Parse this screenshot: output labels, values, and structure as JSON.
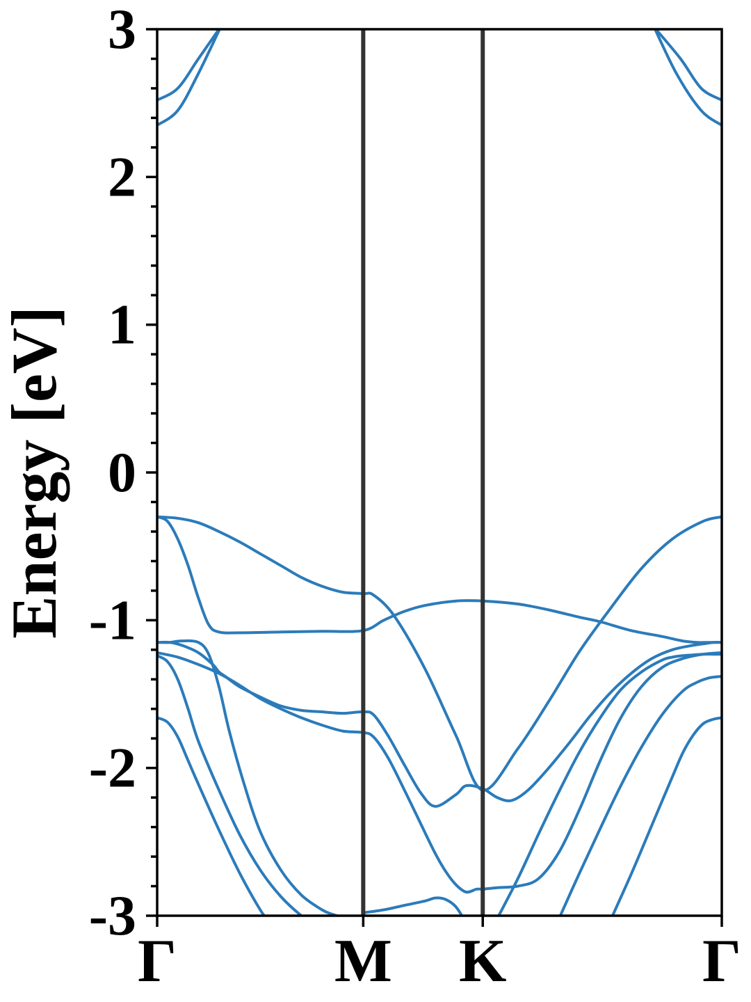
{
  "chart_data": {
    "type": "line",
    "xlabel": "",
    "ylabel": "Energy [eV]",
    "ylim": [
      -3,
      3
    ],
    "y_ticks": [
      "3",
      "2",
      "1",
      "0",
      "-1",
      "-2",
      "-3"
    ],
    "y_tick_values": [
      3,
      2,
      1,
      0,
      -1,
      -2,
      -3
    ],
    "y_minor_step": 0.2,
    "grid": false,
    "k_points": [
      {
        "label": "Γ",
        "x": 0.0
      },
      {
        "label": "M",
        "x": 1.0
      },
      {
        "label": "K",
        "x": 1.58
      },
      {
        "label": "Γ",
        "x": 2.74
      }
    ],
    "xlim": [
      0,
      2.74
    ],
    "colors": {
      "band": "#2b7bba",
      "k_line": "#333333",
      "axis": "#000000"
    },
    "series": [
      {
        "x": [
          0,
          0.1,
          0.2,
          0.3
        ],
        "y": [
          2.52,
          2.6,
          2.8,
          3.0
        ]
      },
      {
        "x": [
          0,
          0.1,
          0.2,
          0.32
        ],
        "y": [
          2.35,
          2.45,
          2.7,
          3.05
        ]
      },
      {
        "x": [
          2.42,
          2.54,
          2.64,
          2.74
        ],
        "y": [
          3.0,
          2.8,
          2.6,
          2.52
        ]
      },
      {
        "x": [
          2.4,
          2.52,
          2.64,
          2.74
        ],
        "y": [
          3.05,
          2.7,
          2.45,
          2.35
        ]
      },
      {
        "x": [
          0,
          0.1,
          0.2,
          0.3,
          0.4,
          0.5,
          0.6,
          0.7,
          0.8,
          0.9,
          1.0,
          1.05,
          1.15,
          1.3,
          1.45,
          1.58,
          1.75,
          1.9,
          2.05,
          2.2,
          2.35,
          2.5,
          2.65,
          2.74
        ],
        "y": [
          -0.3,
          -0.31,
          -0.34,
          -0.4,
          -0.47,
          -0.55,
          -0.63,
          -0.71,
          -0.77,
          -0.81,
          -0.82,
          -0.83,
          -0.97,
          -1.33,
          -1.78,
          -2.15,
          -1.87,
          -1.55,
          -1.21,
          -0.92,
          -0.65,
          -0.45,
          -0.33,
          -0.3
        ]
      },
      {
        "x": [
          0,
          0.05,
          0.1,
          0.15,
          0.2,
          0.25,
          0.3,
          0.4,
          0.6,
          0.8,
          1.0,
          1.1,
          1.2,
          1.3,
          1.45,
          1.58,
          1.75,
          1.9,
          2.05,
          2.15,
          2.3,
          2.45,
          2.55,
          2.62,
          2.68,
          2.74
        ],
        "y": [
          -0.3,
          -0.33,
          -0.45,
          -0.63,
          -0.85,
          -1.03,
          -1.08,
          -1.085,
          -1.08,
          -1.075,
          -1.07,
          -1.0,
          -0.94,
          -0.9,
          -0.87,
          -0.87,
          -0.89,
          -0.93,
          -0.98,
          -1.01,
          -1.07,
          -1.11,
          -1.14,
          -1.15,
          -1.15,
          -1.15
        ]
      },
      {
        "x": [
          0,
          0.06,
          0.12,
          0.2,
          0.25,
          0.3,
          0.35,
          0.42,
          0.5,
          0.6,
          0.7,
          0.8,
          0.85,
          0.9,
          0.95,
          1.0
        ],
        "y": [
          -1.15,
          -1.15,
          -1.14,
          -1.15,
          -1.23,
          -1.45,
          -1.75,
          -2.1,
          -2.43,
          -2.69,
          -2.86,
          -2.96,
          -2.99,
          -3.01,
          -3.02,
          -3.0
        ]
      },
      {
        "x": [
          0,
          0.06,
          0.12,
          0.2,
          0.27,
          0.3,
          0.33,
          0.4,
          0.5,
          0.6,
          0.7,
          0.8,
          0.9,
          1.0,
          1.05,
          1.12,
          1.2,
          1.28,
          1.35,
          1.45,
          1.5,
          1.58,
          1.65,
          1.72,
          1.8,
          1.9,
          2.0,
          2.1,
          2.2,
          2.3,
          2.4,
          2.5,
          2.6,
          2.65,
          2.7,
          2.74
        ],
        "y": [
          -1.15,
          -1.15,
          -1.17,
          -1.22,
          -1.3,
          -1.35,
          -1.38,
          -1.45,
          -1.52,
          -1.58,
          -1.61,
          -1.62,
          -1.63,
          -1.62,
          -1.64,
          -1.78,
          -1.98,
          -2.17,
          -2.26,
          -2.18,
          -2.12,
          -2.14,
          -2.2,
          -2.22,
          -2.15,
          -2.0,
          -1.83,
          -1.65,
          -1.49,
          -1.36,
          -1.26,
          -1.2,
          -1.17,
          -1.16,
          -1.15,
          -1.15
        ]
      },
      {
        "x": [
          0,
          0.1,
          0.2,
          0.3,
          0.4,
          0.5,
          0.6,
          0.7,
          0.8,
          0.9,
          1.0,
          1.05,
          1.12,
          1.2,
          1.28,
          1.35,
          1.4,
          1.45,
          1.5,
          1.55,
          1.58,
          1.65,
          1.75,
          1.85,
          1.95,
          2.05,
          2.15,
          2.25,
          2.35,
          2.45,
          2.55,
          2.65,
          2.74
        ],
        "y": [
          -1.22,
          -1.25,
          -1.3,
          -1.36,
          -1.44,
          -1.53,
          -1.6,
          -1.66,
          -1.71,
          -1.75,
          -1.76,
          -1.79,
          -1.93,
          -2.15,
          -2.38,
          -2.58,
          -2.7,
          -2.79,
          -2.84,
          -2.82,
          -2.82,
          -2.81,
          -2.8,
          -2.75,
          -2.57,
          -2.28,
          -1.95,
          -1.66,
          -1.45,
          -1.32,
          -1.26,
          -1.23,
          -1.22
        ]
      },
      {
        "x": [
          0,
          0.05,
          0.1,
          0.15,
          0.2,
          0.3,
          0.4,
          0.5,
          0.6,
          0.7,
          0.75,
          0.8,
          0.85,
          0.9,
          0.95,
          1.0
        ],
        "y": [
          -1.24,
          -1.28,
          -1.4,
          -1.6,
          -1.82,
          -2.15,
          -2.45,
          -2.69,
          -2.87,
          -3.0,
          -3.04,
          -3.07,
          -3.09,
          -3.1,
          -3.1,
          -3.1
        ]
      },
      {
        "x": [
          0,
          0.05,
          0.1,
          0.15,
          0.2,
          0.3,
          0.4,
          0.5,
          0.55,
          0.6
        ],
        "y": [
          -1.66,
          -1.69,
          -1.79,
          -1.95,
          -2.11,
          -2.42,
          -2.71,
          -2.96,
          -3.05,
          -3.12
        ]
      },
      {
        "x": [
          1.0,
          1.1,
          1.2,
          1.3,
          1.35,
          1.4,
          1.45,
          1.5
        ],
        "y": [
          -2.98,
          -2.96,
          -2.93,
          -2.9,
          -2.88,
          -2.89,
          -2.94,
          -3.05
        ]
      },
      {
        "x": [
          1.65,
          1.75,
          1.85,
          1.95,
          2.05,
          2.15,
          2.25,
          2.35,
          2.45,
          2.5,
          2.55,
          2.6,
          2.65,
          2.7,
          2.74
        ],
        "y": [
          -3.02,
          -2.75,
          -2.45,
          -2.16,
          -1.89,
          -1.66,
          -1.47,
          -1.35,
          -1.27,
          -1.25,
          -1.24,
          -1.235,
          -1.23,
          -1.23,
          -1.23
        ]
      },
      {
        "x": [
          1.95,
          2.05,
          2.15,
          2.25,
          2.35,
          2.45,
          2.55,
          2.62,
          2.68,
          2.74
        ],
        "y": [
          -3.02,
          -2.71,
          -2.41,
          -2.12,
          -1.86,
          -1.64,
          -1.48,
          -1.42,
          -1.39,
          -1.38
        ]
      },
      {
        "x": [
          2.2,
          2.3,
          2.4,
          2.5,
          2.55,
          2.6,
          2.65,
          2.7,
          2.74
        ],
        "y": [
          -3.03,
          -2.72,
          -2.39,
          -2.06,
          -1.9,
          -1.78,
          -1.7,
          -1.67,
          -1.66
        ]
      }
    ]
  }
}
